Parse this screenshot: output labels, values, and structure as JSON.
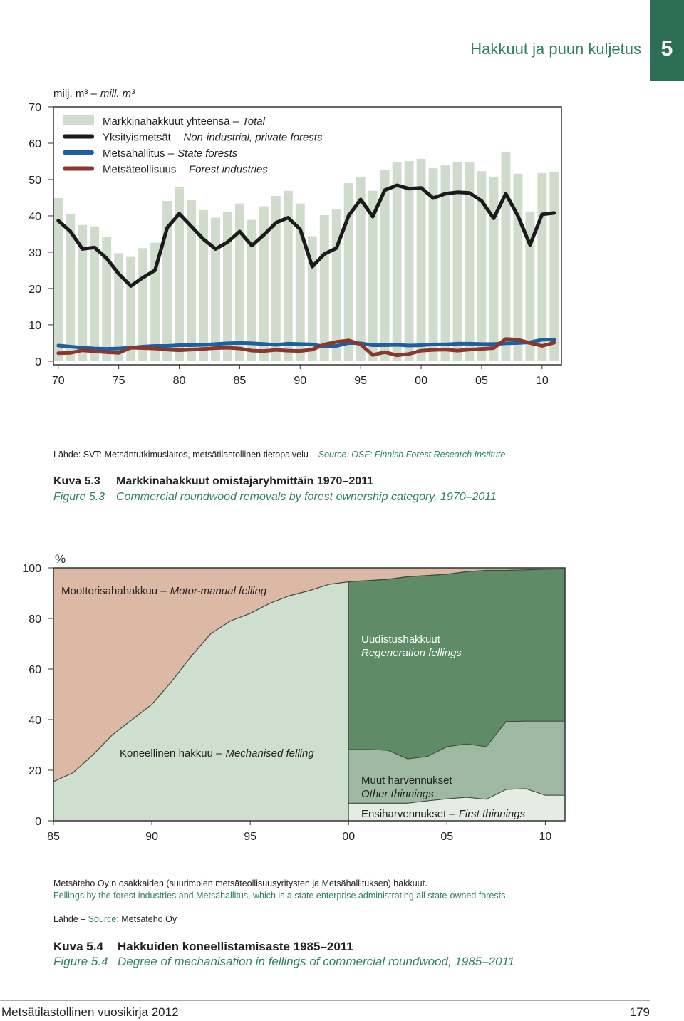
{
  "header": {
    "title": "Hakkuut ja puun kuljetus",
    "chapter": "5"
  },
  "chart_data": [
    {
      "type": "bar",
      "y_label": "milj. m³ –",
      "y_label_en": "mill. m³",
      "x": [
        1970,
        1971,
        1972,
        1973,
        1974,
        1975,
        1976,
        1977,
        1978,
        1979,
        1980,
        1981,
        1982,
        1983,
        1984,
        1985,
        1986,
        1987,
        1988,
        1989,
        1990,
        1991,
        1992,
        1993,
        1994,
        1995,
        1996,
        1997,
        1998,
        1999,
        2000,
        2001,
        2002,
        2003,
        2004,
        2005,
        2006,
        2007,
        2008,
        2009,
        2010,
        2011
      ],
      "xlim": [
        1969.6,
        2011.6
      ],
      "ylim": [
        -1,
        70
      ],
      "xticks": [
        {
          "value": 1970,
          "label": "70"
        },
        {
          "value": 1975,
          "label": "75"
        },
        {
          "value": 1980,
          "label": "80"
        },
        {
          "value": 1985,
          "label": "85"
        },
        {
          "value": 1990,
          "label": "90"
        },
        {
          "value": 1995,
          "label": "95"
        },
        {
          "value": 2000,
          "label": "00"
        },
        {
          "value": 2005,
          "label": "05"
        },
        {
          "value": 2010,
          "label": "10"
        }
      ],
      "yticks": [
        0,
        10,
        20,
        30,
        40,
        50,
        60,
        70
      ],
      "grid": false,
      "series": [
        {
          "name": "Markkinahakkuut yhteensä –",
          "name_en": "Total",
          "type": "bar",
          "color": "#cfdccc",
          "values": [
            44.9,
            40.6,
            37.5,
            37.1,
            34.2,
            29.7,
            28.7,
            31.1,
            32.6,
            44.1,
            47.9,
            44.3,
            41.6,
            39.5,
            41.2,
            43.4,
            38.9,
            42.6,
            45.5,
            46.9,
            43.4,
            34.4,
            40.2,
            41.8,
            49.0,
            50.8,
            46.9,
            52.7,
            54.9,
            55.1,
            55.7,
            53.1,
            53.9,
            54.7,
            54.7,
            52.3,
            50.8,
            57.6,
            51.6,
            41.2,
            51.8,
            52.1
          ]
        },
        {
          "name": "Yksityismetsät –",
          "name_en": "Non-industrial, private forests",
          "type": "line",
          "color": "#1b1b1b",
          "values": [
            38.7,
            35.7,
            30.9,
            31.3,
            28.3,
            24.0,
            20.7,
            23.0,
            25.0,
            36.7,
            40.6,
            37.1,
            33.6,
            30.9,
            32.8,
            35.7,
            31.8,
            34.8,
            38.1,
            39.5,
            36.3,
            26.0,
            29.5,
            31.1,
            40.0,
            44.5,
            39.8,
            47.1,
            48.4,
            47.5,
            47.7,
            44.9,
            46.1,
            46.5,
            46.3,
            44.1,
            39.3,
            46.1,
            40.0,
            32.0,
            40.4,
            40.8
          ]
        },
        {
          "name": "Metsähallitus –",
          "name_en": "State forests",
          "type": "line",
          "color": "#1f5f9f",
          "values": [
            4.3,
            4.0,
            3.7,
            3.5,
            3.4,
            3.5,
            3.7,
            4.0,
            4.2,
            4.2,
            4.4,
            4.4,
            4.5,
            4.7,
            4.9,
            5.0,
            4.9,
            4.7,
            4.5,
            4.8,
            4.7,
            4.6,
            4.0,
            4.2,
            5.0,
            4.9,
            4.4,
            4.4,
            4.5,
            4.3,
            4.4,
            4.6,
            4.6,
            4.8,
            4.8,
            4.7,
            4.7,
            4.9,
            5.0,
            5.2,
            5.9,
            5.9
          ]
        },
        {
          "name": "Metsäteollisuus –",
          "name_en": "Forest industries",
          "type": "line",
          "color": "#8c372c",
          "values": [
            2.2,
            2.3,
            3.0,
            2.7,
            2.5,
            2.3,
            3.7,
            3.6,
            3.5,
            3.2,
            3.0,
            3.2,
            3.4,
            3.6,
            3.7,
            3.5,
            2.9,
            2.8,
            3.1,
            2.9,
            2.8,
            3.2,
            4.6,
            5.3,
            5.7,
            4.6,
            1.7,
            2.5,
            1.6,
            2.0,
            2.9,
            3.1,
            3.2,
            2.9,
            3.2,
            3.4,
            3.6,
            6.1,
            5.9,
            5.0,
            4.2,
            5.1
          ]
        }
      ]
    },
    {
      "type": "area",
      "y_label": "%",
      "x": [
        1985,
        1986,
        1987,
        1988,
        1989,
        1990,
        1991,
        1992,
        1993,
        1994,
        1995,
        1996,
        1997,
        1998,
        1999,
        2000,
        2001,
        2002,
        2003,
        2004,
        2005,
        2006,
        2007,
        2008,
        2009,
        2010,
        2011
      ],
      "xlim": [
        1985,
        2011
      ],
      "ylim": [
        0,
        100
      ],
      "xticks": [
        {
          "value": 1985,
          "label": "85"
        },
        {
          "value": 1990,
          "label": "90"
        },
        {
          "value": 1995,
          "label": "95"
        },
        {
          "value": 2000,
          "label": "00"
        },
        {
          "value": 2005,
          "label": "05"
        },
        {
          "value": 2010,
          "label": "10"
        }
      ],
      "yticks": [
        0,
        20,
        40,
        60,
        80,
        100
      ],
      "grid": false,
      "remainder": {
        "name": "Moottorisahahakkuu –",
        "name_en": "Motor-manual felling",
        "color": "#dbb9a5"
      },
      "series": [
        {
          "name": "Koneellinen hakkuu –",
          "name_en": "Mechanised felling",
          "color": "#cfdfcf",
          "values": [
            15.5,
            19,
            26,
            34,
            40,
            46,
            55,
            65,
            74,
            79,
            82,
            86,
            89,
            91,
            93.5,
            94.5,
            95,
            95.5,
            96.5,
            97,
            97.5,
            98.5,
            99,
            99,
            99.2,
            99.5,
            99.6
          ]
        },
        {
          "name": "Ensiharvennukset –",
          "name_en": "First thinnings",
          "color": "#e4ece4",
          "values": [
            null,
            null,
            null,
            null,
            null,
            null,
            null,
            null,
            null,
            null,
            null,
            null,
            null,
            null,
            null,
            7.0,
            7.0,
            7.0,
            7.0,
            7.9,
            8.7,
            9.3,
            8.5,
            12.4,
            12.7,
            10.1,
            10.1
          ]
        },
        {
          "name": "Muut harvennukset",
          "name_en": "Other thinnings",
          "color": "#9fb8a2",
          "values": [
            null,
            null,
            null,
            null,
            null,
            null,
            null,
            null,
            null,
            null,
            null,
            null,
            null,
            null,
            null,
            21.2,
            21.2,
            20.9,
            17.5,
            17.5,
            20.6,
            21.1,
            20.8,
            26.8,
            26.7,
            29.3,
            29.3
          ]
        },
        {
          "name": "Uudistushakkuut",
          "name_en": "Regeneration fellings",
          "color": "#5d8c66",
          "values": [
            null,
            null,
            null,
            null,
            null,
            null,
            null,
            null,
            null,
            null,
            null,
            null,
            null,
            null,
            null,
            66.3,
            66.8,
            67.6,
            72.0,
            71.6,
            68.2,
            68.1,
            69.7,
            59.8,
            59.8,
            60.1,
            60.2
          ]
        }
      ]
    }
  ],
  "figure1": {
    "source_fi": "Lähde: SVT: Metsäntutkimuslaitos, metsätilastollinen tietopalvelu –",
    "source_en": "Source: OSF: Finnish Forest Research Institute",
    "label_fi": "Kuva 5.3",
    "title_fi": "Markkinahakkuut omistajaryhmittäin 1970–2011",
    "label_en": "Figure 5.3",
    "title_en": "Commercial roundwood removals by forest ownership category, 1970–2011"
  },
  "figure2": {
    "note_fi": "Metsäteho Oy:n osakkaiden (suurimpien metsäteollisuusyritysten ja Metsähallituksen) hakkuut.",
    "note_en": "Fellings by the forest industries and Metsähallitus, which is a state enterprise administrating all state-owned forests.",
    "source_fi": "Lähde –",
    "source_en": "Source:",
    "source_name": "Metsäteho Oy",
    "label_fi": "Kuva 5.4",
    "title_fi": "Hakkuiden koneellistamisaste 1985–2011",
    "label_en": "Figure 5.4",
    "title_en": "Degree of mechanisation in fellings of commercial roundwood, 1985–2011"
  },
  "footer": {
    "publication": "Metsätilastollinen vuosikirja 2012",
    "page": "179"
  }
}
